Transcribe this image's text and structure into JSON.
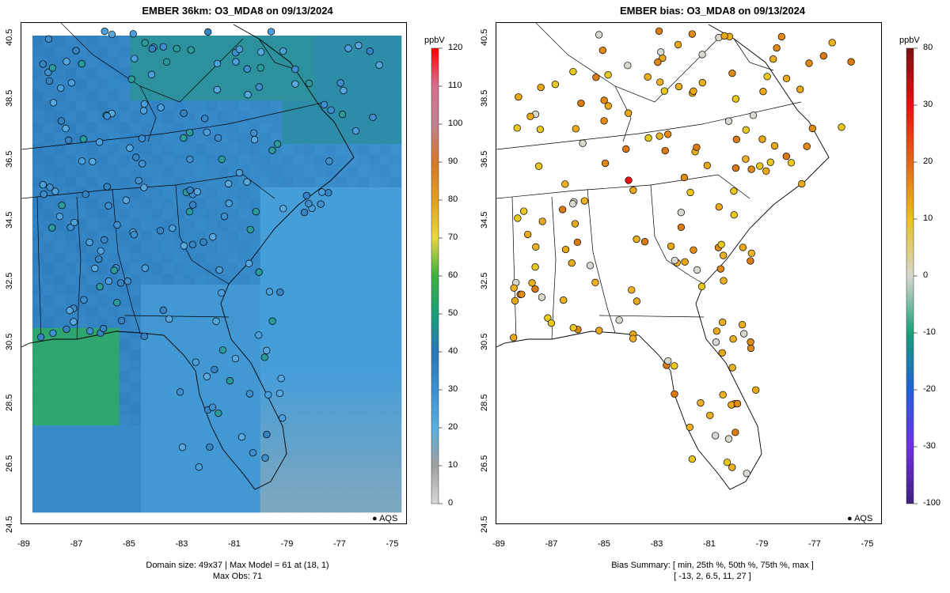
{
  "left": {
    "title": "EMBER 36km: O3_MDA8 on 09/13/2024",
    "footer_line1": "Domain size: 49x37 | Max Model = 61 at (18, 1)",
    "footer_line2": "Max Obs: 71",
    "unit": "ppbV",
    "colorbar_ticks": [
      "120",
      "110",
      "100",
      "90",
      "80",
      "70",
      "60",
      "50",
      "40",
      "30",
      "20",
      "10",
      "0"
    ],
    "colorbar_values": [
      120,
      110,
      100,
      90,
      80,
      70,
      60,
      50,
      40,
      30,
      20,
      10,
      0
    ],
    "legend_label": "AQS"
  },
  "right": {
    "title": "EMBER bias: O3_MDA8 on 09/13/2024",
    "footer_line1": "Bias Summary: [ min, 25th %, 50th %, 75th %, max ]",
    "footer_line2": "[ -13,  2,  6.5,  11,  27 ]",
    "unit": "ppbV",
    "colorbar_ticks": [
      "80",
      "30",
      "20",
      "10",
      "0",
      "-10",
      "-20",
      "-30",
      "-100"
    ],
    "colorbar_values": [
      80,
      30,
      20,
      10,
      0,
      -10,
      -20,
      -30,
      -100
    ],
    "legend_label": "AQS"
  },
  "axes": {
    "x_ticks": [
      "-89",
      "-87",
      "-85",
      "-83",
      "-81",
      "-79",
      "-77",
      "-75"
    ],
    "y_ticks": [
      "40.5",
      "38.5",
      "36.5",
      "34.5",
      "32.5",
      "30.5",
      "28.5",
      "26.5",
      "24.5"
    ]
  },
  "colors": {
    "model_field_main": "#2f7fc0",
    "model_field_light": "#3f9fd8",
    "model_field_green": "#2aa37a",
    "bias_orange": "#e08a16",
    "bias_yellow": "#e8c81e",
    "bias_gray": "#d8d8d0"
  }
}
